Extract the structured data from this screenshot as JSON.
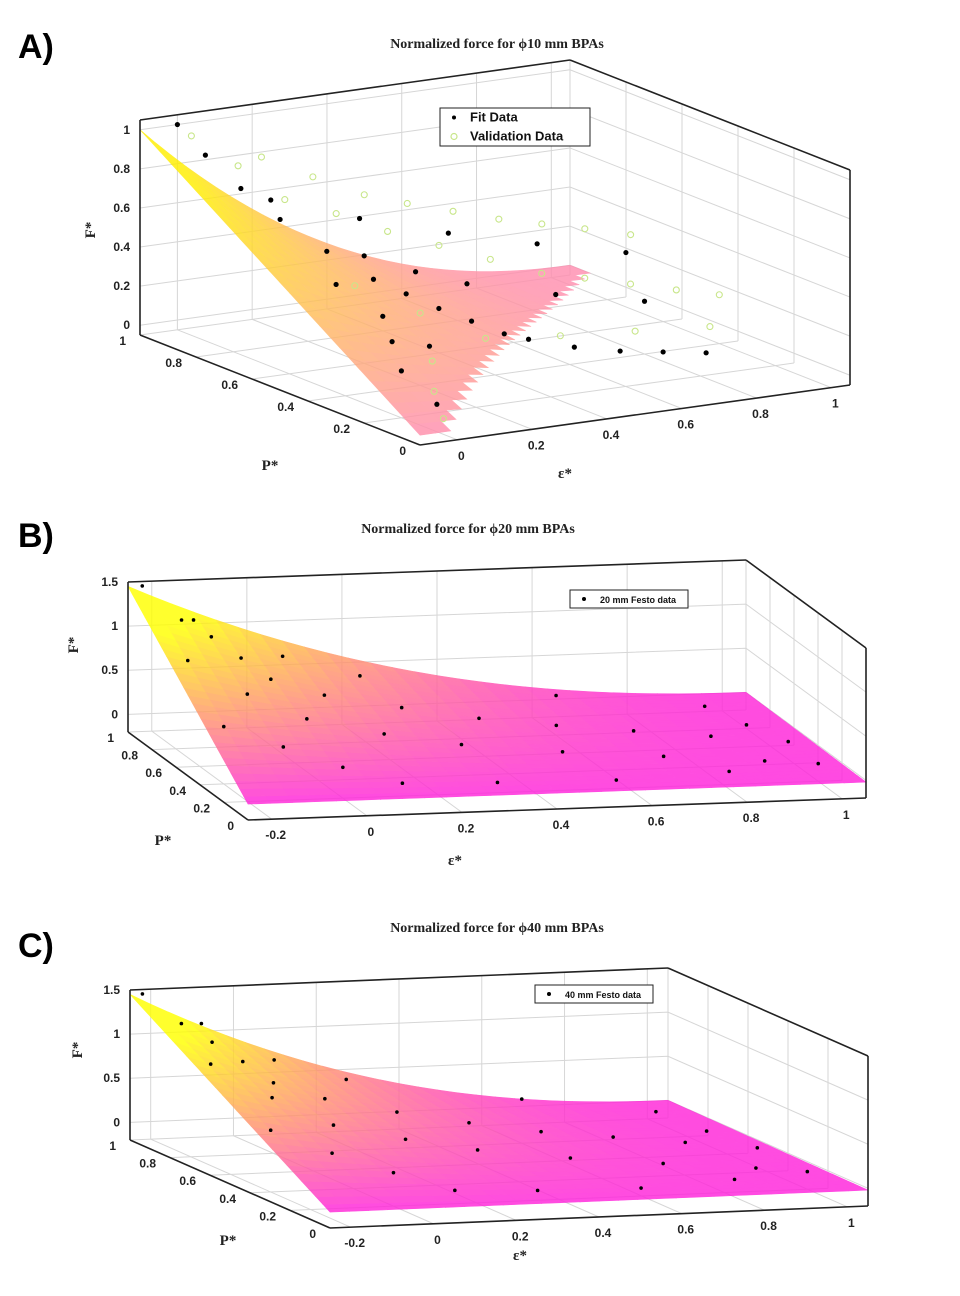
{
  "panels": [
    {
      "label": "A)",
      "chart_data": {
        "type": "scatter",
        "title": "Normalized force for ϕ10 mm BPAs",
        "xlabel": "ε*",
        "ylabel": "P*",
        "zlabel": "F*",
        "x_ticks": [
          "0",
          "0.2",
          "0.4",
          "0.6",
          "0.8",
          "1"
        ],
        "y_ticks": [
          "0",
          "0.2",
          "0.4",
          "0.6",
          "0.8",
          "1"
        ],
        "z_ticks": [
          "0",
          "0.2",
          "0.4",
          "0.6",
          "0.8",
          "1"
        ],
        "xlim": [
          -0.1,
          1.05
        ],
        "ylim": [
          0,
          1
        ],
        "zlim": [
          -0.05,
          1.05
        ],
        "grid": true,
        "legend_position": "top-right",
        "surface_colors": [
          "#ffee00",
          "#ff88bb"
        ],
        "series": [
          {
            "name": "Fit Data",
            "marker": "filled-dot",
            "color": "#000000",
            "points": [
              [
                0.0,
                1.0,
                1.0
              ],
              [
                0.0,
                0.9,
                0.9
              ],
              [
                0.02,
                0.8,
                0.78
              ],
              [
                0.05,
                0.7,
                0.67
              ],
              [
                0.1,
                0.6,
                0.55
              ],
              [
                0.15,
                0.5,
                0.45
              ],
              [
                0.2,
                0.45,
                0.39
              ],
              [
                0.25,
                0.4,
                0.33
              ],
              [
                0.3,
                0.35,
                0.28
              ],
              [
                0.35,
                0.3,
                0.23
              ],
              [
                0.4,
                0.28,
                0.2
              ],
              [
                0.5,
                0.25,
                0.15
              ],
              [
                0.6,
                0.22,
                0.12
              ],
              [
                0.7,
                0.2,
                0.1
              ],
              [
                0.8,
                0.18,
                0.08
              ],
              [
                0.05,
                0.5,
                0.45
              ],
              [
                0.1,
                0.4,
                0.33
              ],
              [
                0.15,
                0.3,
                0.22
              ],
              [
                0.05,
                0.3,
                0.27
              ],
              [
                0.0,
                0.2,
                0.19
              ],
              [
                0.02,
                0.1,
                0.07
              ],
              [
                0.2,
                0.6,
                0.5
              ],
              [
                0.3,
                0.55,
                0.42
              ],
              [
                0.4,
                0.5,
                0.36
              ],
              [
                0.6,
                0.45,
                0.28
              ],
              [
                0.8,
                0.4,
                0.22
              ],
              [
                0.1,
                0.8,
                0.7
              ],
              [
                0.3,
                0.75,
                0.58
              ],
              [
                0.5,
                0.7,
                0.48
              ],
              [
                0.7,
                0.65,
                0.4
              ],
              [
                0.9,
                0.6,
                0.33
              ]
            ]
          },
          {
            "name": "Validation Data",
            "marker": "open-circle",
            "color": "#c8e68a",
            "points": [
              [
                0.0,
                0.95,
                0.97
              ],
              [
                0.05,
                0.85,
                0.86
              ],
              [
                0.1,
                0.75,
                0.73
              ],
              [
                0.2,
                0.7,
                0.66
              ],
              [
                0.3,
                0.65,
                0.57
              ],
              [
                0.4,
                0.6,
                0.5
              ],
              [
                0.5,
                0.55,
                0.43
              ],
              [
                0.6,
                0.5,
                0.36
              ],
              [
                0.7,
                0.48,
                0.32
              ],
              [
                0.8,
                0.45,
                0.28
              ],
              [
                0.9,
                0.42,
                0.24
              ],
              [
                1.0,
                0.4,
                0.2
              ],
              [
                0.15,
                0.9,
                0.85
              ],
              [
                0.25,
                0.85,
                0.75
              ],
              [
                0.35,
                0.8,
                0.66
              ],
              [
                0.45,
                0.78,
                0.6
              ],
              [
                0.55,
                0.75,
                0.55
              ],
              [
                0.65,
                0.72,
                0.5
              ],
              [
                0.75,
                0.7,
                0.46
              ],
              [
                0.85,
                0.68,
                0.42
              ],
              [
                0.95,
                0.65,
                0.38
              ],
              [
                0.1,
                0.5,
                0.43
              ],
              [
                0.2,
                0.4,
                0.32
              ],
              [
                0.3,
                0.3,
                0.22
              ],
              [
                0.5,
                0.3,
                0.18
              ],
              [
                0.7,
                0.3,
                0.15
              ],
              [
                0.9,
                0.3,
                0.12
              ],
              [
                0.0,
                0.05,
                0.03
              ],
              [
                0.05,
                0.15,
                0.1
              ],
              [
                0.12,
                0.25,
                0.18
              ]
            ]
          }
        ]
      }
    },
    {
      "label": "B)",
      "chart_data": {
        "type": "scatter",
        "title": "Normalized force for ϕ20 mm BPAs",
        "xlabel": "ε*",
        "ylabel": "P*",
        "zlabel": "F*",
        "x_ticks": [
          "-0.2",
          "0",
          "0.2",
          "0.4",
          "0.6",
          "0.8",
          "1"
        ],
        "y_ticks": [
          "0",
          "0.2",
          "0.4",
          "0.6",
          "0.8",
          "1"
        ],
        "z_ticks": [
          "0",
          "0.5",
          "1",
          "1.5"
        ],
        "xlim": [
          -0.25,
          1.05
        ],
        "ylim": [
          0,
          1
        ],
        "zlim": [
          -0.2,
          1.5
        ],
        "grid": true,
        "legend_position": "top-right",
        "surface_colors": [
          "#ffff00",
          "#ff00ff"
        ],
        "series": [
          {
            "name": "20 mm Festo data",
            "marker": "filled-dot",
            "color": "#000000",
            "points": [
              [
                -0.22,
                1.0,
                1.45
              ],
              [
                -0.15,
                0.95,
                1.1
              ],
              [
                -0.1,
                0.9,
                0.95
              ],
              [
                -0.05,
                0.85,
                0.75
              ],
              [
                0.0,
                0.8,
                0.55
              ],
              [
                0.1,
                0.75,
                0.4
              ],
              [
                0.25,
                0.7,
                0.28
              ],
              [
                0.4,
                0.65,
                0.18
              ],
              [
                0.55,
                0.6,
                0.12
              ],
              [
                0.7,
                0.55,
                0.08
              ],
              [
                0.85,
                0.5,
                0.04
              ],
              [
                1.0,
                0.45,
                0.0
              ],
              [
                -0.2,
                0.7,
                0.9
              ],
              [
                -0.1,
                0.6,
                0.6
              ],
              [
                0.0,
                0.5,
                0.4
              ],
              [
                0.15,
                0.45,
                0.25
              ],
              [
                0.3,
                0.4,
                0.15
              ],
              [
                0.5,
                0.35,
                0.08
              ],
              [
                0.7,
                0.3,
                0.04
              ],
              [
                0.9,
                0.25,
                0.0
              ],
              [
                -0.2,
                0.4,
                0.45
              ],
              [
                -0.1,
                0.3,
                0.3
              ],
              [
                0.0,
                0.2,
                0.15
              ],
              [
                0.1,
                0.1,
                0.05
              ],
              [
                0.3,
                0.1,
                0.02
              ],
              [
                0.55,
                0.1,
                0.0
              ],
              [
                0.8,
                0.15,
                0.0
              ],
              [
                1.0,
                0.2,
                0.0
              ],
              [
                -0.15,
                0.85,
                1.2
              ],
              [
                0.05,
                0.9,
                0.7
              ],
              [
                0.2,
                0.85,
                0.5
              ],
              [
                0.6,
                0.8,
                0.25
              ],
              [
                0.9,
                0.75,
                0.12
              ],
              [
                0.95,
                0.6,
                0.05
              ]
            ]
          }
        ]
      }
    },
    {
      "label": "C)",
      "chart_data": {
        "type": "scatter",
        "title": "Normalized force for ϕ40 mm BPAs",
        "xlabel": "ε*",
        "ylabel": "P*",
        "zlabel": "F*",
        "x_ticks": [
          "-0.2",
          "0",
          "0.2",
          "0.4",
          "0.6",
          "0.8",
          "1"
        ],
        "y_ticks": [
          "0",
          "0.2",
          "0.4",
          "0.6",
          "0.8",
          "1"
        ],
        "z_ticks": [
          "0",
          "0.5",
          "1",
          "1.5"
        ],
        "xlim": [
          -0.25,
          1.05
        ],
        "ylim": [
          0,
          1
        ],
        "zlim": [
          -0.2,
          1.5
        ],
        "grid": true,
        "legend_position": "top-right",
        "surface_colors": [
          "#ffff00",
          "#ff00ff"
        ],
        "series": [
          {
            "name": "40 mm Festo data",
            "marker": "filled-dot",
            "color": "#000000",
            "points": [
              [
                -0.22,
                1.0,
                1.45
              ],
              [
                -0.15,
                0.95,
                1.15
              ],
              [
                -0.1,
                0.9,
                0.98
              ],
              [
                -0.05,
                0.85,
                0.8
              ],
              [
                0.0,
                0.8,
                0.6
              ],
              [
                0.1,
                0.75,
                0.45
              ],
              [
                0.25,
                0.7,
                0.32
              ],
              [
                0.4,
                0.65,
                0.22
              ],
              [
                0.55,
                0.6,
                0.14
              ],
              [
                0.7,
                0.55,
                0.1
              ],
              [
                0.85,
                0.5,
                0.06
              ],
              [
                1.0,
                0.45,
                0.02
              ],
              [
                -0.2,
                0.7,
                0.95
              ],
              [
                -0.1,
                0.6,
                0.65
              ],
              [
                0.0,
                0.5,
                0.42
              ],
              [
                0.15,
                0.45,
                0.28
              ],
              [
                0.3,
                0.4,
                0.18
              ],
              [
                0.5,
                0.35,
                0.1
              ],
              [
                0.7,
                0.3,
                0.05
              ],
              [
                0.9,
                0.25,
                0.01
              ],
              [
                -0.2,
                0.4,
                0.5
              ],
              [
                -0.1,
                0.3,
                0.32
              ],
              [
                0.0,
                0.2,
                0.18
              ],
              [
                0.1,
                0.1,
                0.06
              ],
              [
                0.3,
                0.1,
                0.02
              ],
              [
                0.55,
                0.1,
                0.0
              ],
              [
                0.8,
                0.15,
                0.0
              ],
              [
                1.0,
                0.2,
                0.0
              ],
              [
                -0.15,
                0.85,
                1.25
              ],
              [
                0.05,
                0.9,
                0.75
              ],
              [
                0.2,
                0.85,
                0.55
              ],
              [
                0.6,
                0.8,
                0.3
              ],
              [
                0.9,
                0.75,
                0.15
              ],
              [
                0.95,
                0.6,
                0.07
              ]
            ]
          }
        ]
      }
    }
  ]
}
